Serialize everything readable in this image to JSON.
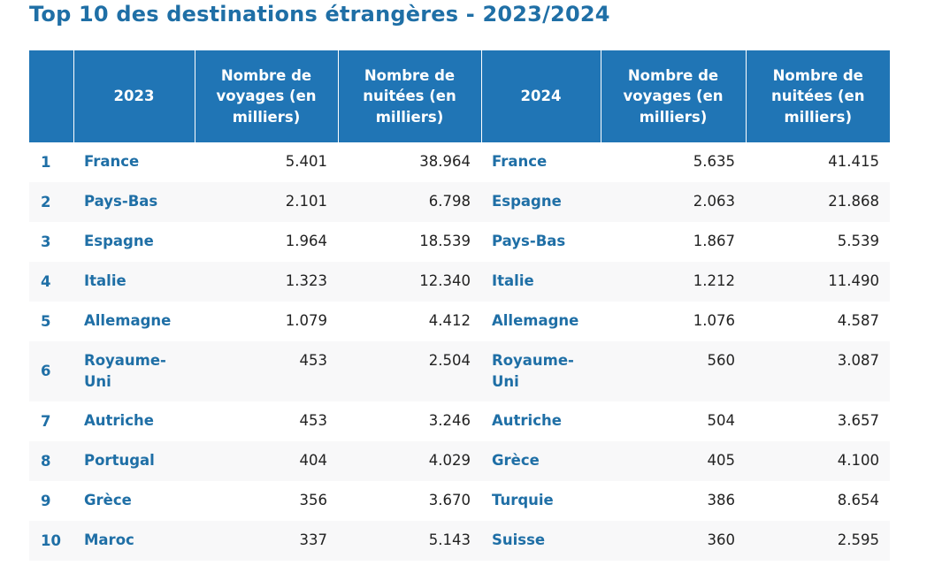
{
  "title": "Top 10 des destinations étrangères - 2023/2024",
  "table": {
    "headers": [
      "",
      "2023",
      "Nombre de voyages (en milliers)",
      "Nombre de nuitées (en milliers)",
      "2024",
      "Nombre de voyages (en milliers)",
      "Nombre de nuitées (en milliers)"
    ],
    "rows": [
      {
        "rank": "1",
        "country_2023": "France",
        "voyages_2023": "5.401",
        "nuitees_2023": "38.964",
        "country_2024": "France",
        "voyages_2024": "5.635",
        "nuitees_2024": "41.415"
      },
      {
        "rank": "2",
        "country_2023": "Pays-Bas",
        "voyages_2023": "2.101",
        "nuitees_2023": "6.798",
        "country_2024": "Espagne",
        "voyages_2024": "2.063",
        "nuitees_2024": "21.868"
      },
      {
        "rank": "3",
        "country_2023": "Espagne",
        "voyages_2023": "1.964",
        "nuitees_2023": "18.539",
        "country_2024": "Pays-Bas",
        "voyages_2024": "1.867",
        "nuitees_2024": "5.539"
      },
      {
        "rank": "4",
        "country_2023": "Italie",
        "voyages_2023": "1.323",
        "nuitees_2023": "12.340",
        "country_2024": "Italie",
        "voyages_2024": "1.212",
        "nuitees_2024": "11.490"
      },
      {
        "rank": "5",
        "country_2023": "Allemagne",
        "voyages_2023": "1.079",
        "nuitees_2023": "4.412",
        "country_2024": "Allemagne",
        "voyages_2024": "1.076",
        "nuitees_2024": "4.587"
      },
      {
        "rank": "6",
        "country_2023": "Royaume-Uni",
        "voyages_2023": "453",
        "nuitees_2023": "2.504",
        "country_2024": "Royaume-Uni",
        "voyages_2024": "560",
        "nuitees_2024": "3.087"
      },
      {
        "rank": "7",
        "country_2023": "Autriche",
        "voyages_2023": "453",
        "nuitees_2023": "3.246",
        "country_2024": "Autriche",
        "voyages_2024": "504",
        "nuitees_2024": "3.657"
      },
      {
        "rank": "8",
        "country_2023": "Portugal",
        "voyages_2023": "404",
        "nuitees_2023": "4.029",
        "country_2024": "Grèce",
        "voyages_2024": "405",
        "nuitees_2024": "4.100"
      },
      {
        "rank": "9",
        "country_2023": "Grèce",
        "voyages_2023": "356",
        "nuitees_2023": "3.670",
        "country_2024": "Turquie",
        "voyages_2024": "386",
        "nuitees_2024": "8.654"
      },
      {
        "rank": "10",
        "country_2023": "Maroc",
        "voyages_2023": "337",
        "nuitees_2023": "5.143",
        "country_2024": "Suisse",
        "voyages_2024": "360",
        "nuitees_2024": "2.595"
      }
    ]
  }
}
